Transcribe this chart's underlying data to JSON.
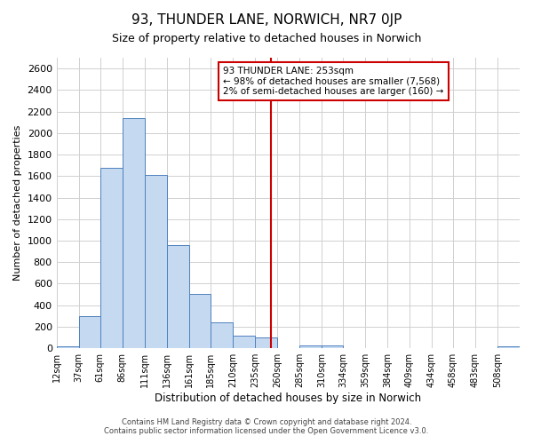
{
  "title": "93, THUNDER LANE, NORWICH, NR7 0JP",
  "subtitle": "Size of property relative to detached houses in Norwich",
  "xlabel": "Distribution of detached houses by size in Norwich",
  "ylabel": "Number of detached properties",
  "bin_labels": [
    "12sqm",
    "37sqm",
    "61sqm",
    "86sqm",
    "111sqm",
    "136sqm",
    "161sqm",
    "185sqm",
    "210sqm",
    "235sqm",
    "260sqm",
    "285sqm",
    "310sqm",
    "334sqm",
    "359sqm",
    "384sqm",
    "409sqm",
    "434sqm",
    "458sqm",
    "483sqm",
    "508sqm"
  ],
  "bar_values": [
    15,
    300,
    1680,
    2140,
    1610,
    960,
    505,
    245,
    115,
    100,
    0,
    30,
    30,
    0,
    0,
    0,
    0,
    0,
    0,
    0,
    15
  ],
  "bar_color": "#c5d9f1",
  "bar_edge_color": "#4f81bd",
  "grid_color": "#d0d0d0",
  "vline_x": 253,
  "vline_color": "#cc0000",
  "ylim": [
    0,
    2700
  ],
  "yticks": [
    0,
    200,
    400,
    600,
    800,
    1000,
    1200,
    1400,
    1600,
    1800,
    2000,
    2200,
    2400,
    2600
  ],
  "annotation_title": "93 THUNDER LANE: 253sqm",
  "annotation_line1": "← 98% of detached houses are smaller (7,568)",
  "annotation_line2": "2% of semi-detached houses are larger (160) →",
  "annotation_box_color": "#ffffff",
  "annotation_box_edge": "#cc0000",
  "footer_line1": "Contains HM Land Registry data © Crown copyright and database right 2024.",
  "footer_line2": "Contains public sector information licensed under the Open Government Licence v3.0.",
  "bin_edges": [
    12,
    37,
    61,
    86,
    111,
    136,
    161,
    185,
    210,
    235,
    260,
    285,
    310,
    334,
    359,
    384,
    409,
    434,
    458,
    483,
    508,
    533
  ]
}
